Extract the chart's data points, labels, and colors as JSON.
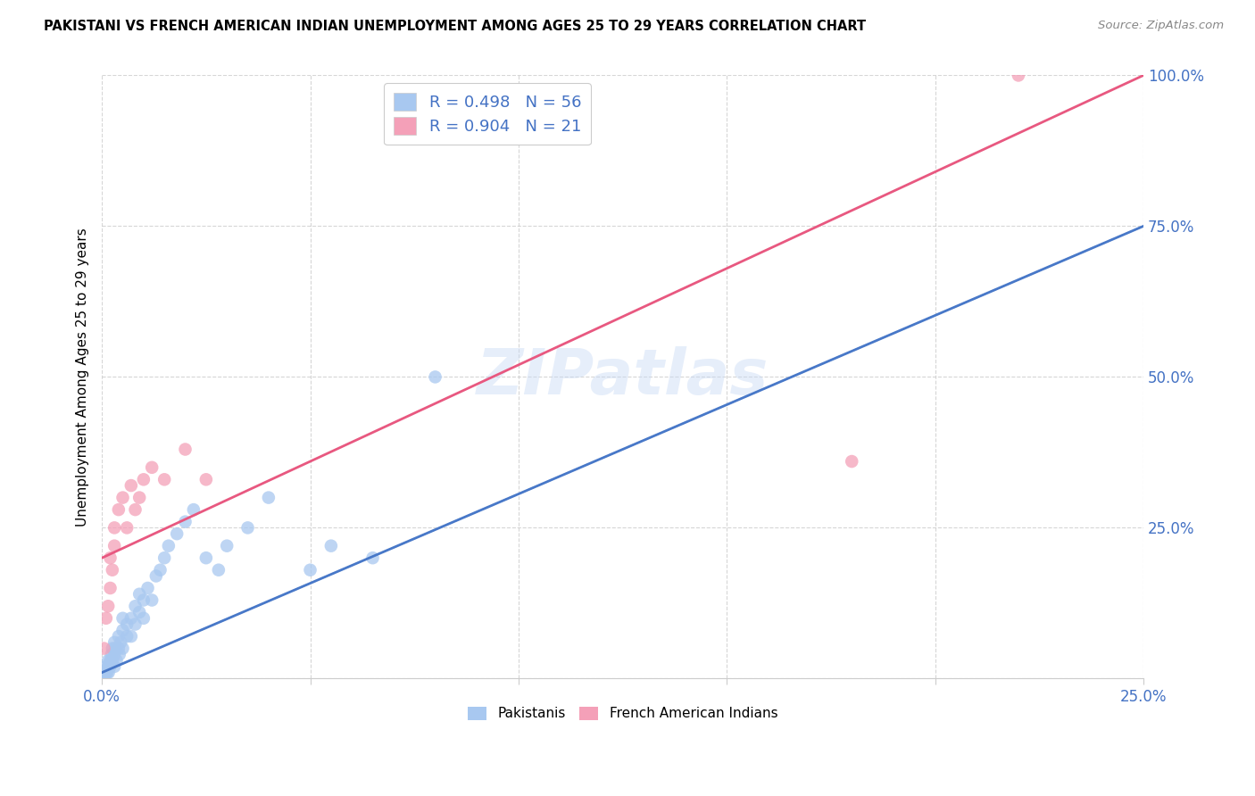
{
  "title": "PAKISTANI VS FRENCH AMERICAN INDIAN UNEMPLOYMENT AMONG AGES 25 TO 29 YEARS CORRELATION CHART",
  "source": "Source: ZipAtlas.com",
  "xlabel": "",
  "ylabel": "Unemployment Among Ages 25 to 29 years",
  "xlim": [
    0,
    0.25
  ],
  "ylim": [
    0,
    1.0
  ],
  "xticks": [
    0.0,
    0.05,
    0.1,
    0.15,
    0.2,
    0.25
  ],
  "yticks": [
    0.0,
    0.25,
    0.5,
    0.75,
    1.0
  ],
  "xticklabels": [
    "0.0%",
    "",
    "",
    "",
    "",
    "25.0%"
  ],
  "yticklabels": [
    "",
    "25.0%",
    "50.0%",
    "75.0%",
    "100.0%"
  ],
  "pakistani_R": 0.498,
  "pakistani_N": 56,
  "french_R": 0.904,
  "french_N": 21,
  "pakistani_color": "#a8c8f0",
  "french_color": "#f4a0b8",
  "pakistani_line_color": "#4878c8",
  "french_line_color": "#e85880",
  "watermark": "ZIPatlas",
  "pak_line_x0": 0.0,
  "pak_line_y0": 0.01,
  "pak_line_x1": 0.25,
  "pak_line_y1": 0.75,
  "fr_line_x0": 0.0,
  "fr_line_y0": 0.2,
  "fr_line_x1": 0.25,
  "fr_line_y1": 1.0,
  "pakistani_x": [
    0.0005,
    0.0008,
    0.001,
    0.001,
    0.0012,
    0.0013,
    0.0015,
    0.0015,
    0.0016,
    0.0018,
    0.002,
    0.002,
    0.0022,
    0.0023,
    0.0025,
    0.0025,
    0.003,
    0.003,
    0.003,
    0.0032,
    0.0035,
    0.004,
    0.004,
    0.0042,
    0.0045,
    0.005,
    0.005,
    0.005,
    0.006,
    0.006,
    0.007,
    0.007,
    0.008,
    0.008,
    0.009,
    0.009,
    0.01,
    0.01,
    0.011,
    0.012,
    0.013,
    0.014,
    0.015,
    0.016,
    0.018,
    0.02,
    0.022,
    0.025,
    0.028,
    0.03,
    0.035,
    0.04,
    0.05,
    0.055,
    0.065,
    0.08
  ],
  "pakistani_y": [
    0.005,
    0.008,
    0.01,
    0.02,
    0.015,
    0.01,
    0.02,
    0.03,
    0.01,
    0.025,
    0.02,
    0.03,
    0.025,
    0.04,
    0.03,
    0.05,
    0.04,
    0.06,
    0.02,
    0.05,
    0.03,
    0.05,
    0.07,
    0.04,
    0.06,
    0.08,
    0.05,
    0.1,
    0.07,
    0.09,
    0.1,
    0.07,
    0.12,
    0.09,
    0.11,
    0.14,
    0.13,
    0.1,
    0.15,
    0.13,
    0.17,
    0.18,
    0.2,
    0.22,
    0.24,
    0.26,
    0.28,
    0.2,
    0.18,
    0.22,
    0.25,
    0.3,
    0.18,
    0.22,
    0.2,
    0.5
  ],
  "french_x": [
    0.0005,
    0.001,
    0.0015,
    0.002,
    0.002,
    0.0025,
    0.003,
    0.003,
    0.004,
    0.005,
    0.006,
    0.007,
    0.008,
    0.009,
    0.01,
    0.012,
    0.015,
    0.02,
    0.025,
    0.18,
    0.22
  ],
  "french_y": [
    0.05,
    0.1,
    0.12,
    0.15,
    0.2,
    0.18,
    0.22,
    0.25,
    0.28,
    0.3,
    0.25,
    0.32,
    0.28,
    0.3,
    0.33,
    0.35,
    0.33,
    0.38,
    0.33,
    0.36,
    1.0
  ]
}
